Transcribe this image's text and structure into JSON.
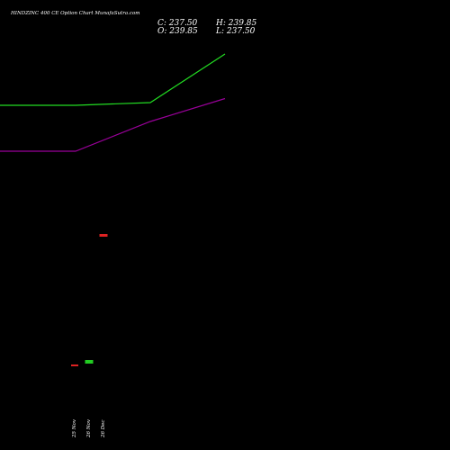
{
  "header": {
    "title": "HINDZINC 400  CE Option  Chart MunafaSutra.com",
    "close_label": "C: 237.50",
    "open_label": "O: 239.85",
    "high_label": "H: 239.85",
    "low_label": "L: 237.50"
  },
  "colors": {
    "background": "#000000",
    "line_green": "#22dd22",
    "line_purple": "#990099",
    "candle_up": "#22cc22",
    "candle_down": "#dd2222"
  },
  "chart_data": {
    "type": "candlestick",
    "title": "HINDZINC 400  CE Option  Chart MunafaSutra.com",
    "x_tick_labels": [
      "25 Nov",
      "26 Nov",
      "26 Dec"
    ],
    "candles": [
      {
        "label": "25 Nov",
        "open": 14.0,
        "high": 14.0,
        "low": 13.2,
        "close": 13.2,
        "direction": "down"
      },
      {
        "label": "26 Nov",
        "open": 13.2,
        "high": 17.8,
        "low": 13.2,
        "close": 17.8,
        "direction": "up"
      },
      {
        "label": "26 Dec",
        "open": 239.85,
        "high": 239.85,
        "low": 237.5,
        "close": 237.5,
        "direction": "down"
      }
    ],
    "series": [
      {
        "color": "green",
        "x_pos": [
          -20,
          84,
          167,
          250
        ],
        "values": [
          660,
          660,
          670,
          850
        ]
      },
      {
        "color": "purple",
        "x_pos": [
          -20,
          84,
          167,
          250
        ],
        "values": [
          490,
          490,
          600,
          685
        ]
      }
    ],
    "y_range": [
      0,
      1000
    ],
    "grid": false,
    "legend": "none"
  }
}
